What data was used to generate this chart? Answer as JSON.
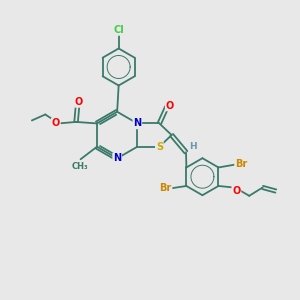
{
  "bg_color": "#e8e8e8",
  "bond_color": "#3a7a6a",
  "atom_colors": {
    "O": "#ff0000",
    "N": "#0000cc",
    "S": "#ccaa00",
    "Cl": "#44cc44",
    "Br": "#cc8800",
    "H": "#6699aa",
    "C": "#3a7a6a"
  },
  "figsize": [
    3.0,
    3.0
  ],
  "dpi": 100
}
